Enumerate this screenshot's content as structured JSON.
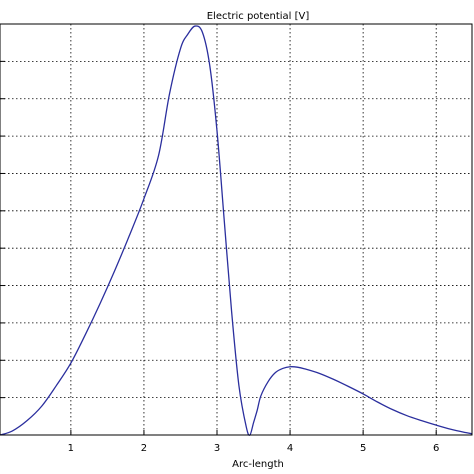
{
  "chart_data": {
    "type": "line",
    "title": "Electric potential [V]",
    "xlabel": "Arc-length",
    "ylabel": "",
    "xlim": [
      0.03,
      6.49
    ],
    "ylim": [
      0,
      1
    ],
    "x_ticks": [
      1,
      2,
      3,
      4,
      5,
      6
    ],
    "x_tick_labels": [
      "1",
      "2",
      "3",
      "4",
      "5",
      "6"
    ],
    "y_grid_count": 11,
    "grid": true,
    "legend": "none",
    "colors": {
      "line": "#2b2f9e",
      "axis": "#000000",
      "grid": "#000000"
    },
    "series": [
      {
        "x": [
          0.03,
          0.2,
          0.4,
          0.6,
          0.8,
          1.0,
          1.2,
          1.4,
          1.6,
          1.8,
          2.0,
          2.2,
          2.35,
          2.5,
          2.6,
          2.7,
          2.8,
          2.9,
          3.0,
          3.1,
          3.2,
          3.3,
          3.4,
          3.45,
          3.5,
          3.55,
          3.6,
          3.7,
          3.8,
          3.9,
          4.0,
          4.1,
          4.2,
          4.4,
          4.6,
          4.8,
          5.0,
          5.2,
          5.4,
          5.6,
          5.8,
          6.0,
          6.2,
          6.4,
          6.49
        ],
        "y": [
          0.0,
          0.01,
          0.035,
          0.07,
          0.12,
          0.175,
          0.245,
          0.32,
          0.4,
          0.485,
          0.575,
          0.68,
          0.83,
          0.94,
          0.975,
          0.995,
          0.98,
          0.9,
          0.74,
          0.52,
          0.3,
          0.12,
          0.02,
          0.0,
          0.03,
          0.06,
          0.095,
          0.13,
          0.152,
          0.162,
          0.166,
          0.165,
          0.161,
          0.15,
          0.135,
          0.118,
          0.1,
          0.08,
          0.062,
          0.047,
          0.035,
          0.024,
          0.014,
          0.006,
          0.003
        ]
      }
    ]
  }
}
